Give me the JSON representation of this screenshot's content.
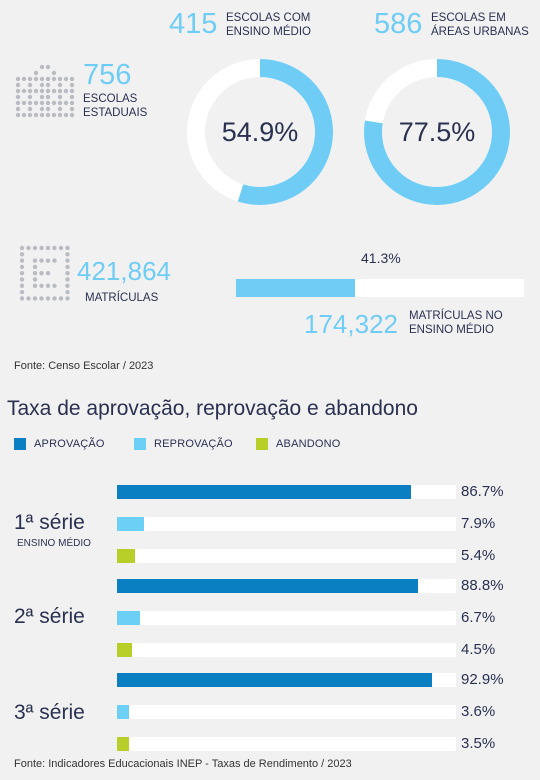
{
  "stats": {
    "escolas_estaduais": {
      "value": "756",
      "label_line1": "ESCOLAS",
      "label_line2": "ESTADUAIS"
    },
    "ensino_medio": {
      "value": "415",
      "label_line1": "ESCOLAS COM",
      "label_line2": "ENSINO MÉDIO",
      "percent_text": "54.9%",
      "fraction": 0.549
    },
    "areas_urbanas": {
      "value": "586",
      "label_line1": "ESCOLAS EM",
      "label_line2": "ÁREAS URBANAS",
      "percent_text": "77.5%",
      "fraction": 0.775
    },
    "matriculas": {
      "value": "421,864",
      "label": "MATRÍCULAS"
    },
    "matriculas_em": {
      "value": "174,322",
      "label_line1": "MATRÍCULAS NO",
      "label_line2": "ENSINO MÉDIO",
      "percent_text": "41.3%",
      "fraction": 0.413
    }
  },
  "source_top": "Fonte: Censo Escolar / 2023",
  "chart_data": {
    "type": "bar",
    "title": "Taxa de aprovação, reprovação e abandono",
    "orientation": "horizontal",
    "categories": [
      "1ª série",
      "2ª série",
      "3ª série"
    ],
    "category_note": "ENSINO MÉDIO",
    "series": [
      {
        "name": "APROVAÇÃO",
        "color": "#0a7fc2",
        "values": [
          86.7,
          88.8,
          92.9
        ],
        "labels": [
          "86.7%",
          "88.8%",
          "92.9%"
        ]
      },
      {
        "name": "REPROVAÇÃO",
        "color": "#6ccff6",
        "values": [
          7.9,
          6.7,
          3.6
        ],
        "labels": [
          "7.9%",
          "6.7%",
          "3.6%"
        ]
      },
      {
        "name": "ABANDONO",
        "color": "#b7cf28",
        "values": [
          5.4,
          4.5,
          3.5
        ],
        "labels": [
          "5.4%",
          "4.5%",
          "3.5%"
        ]
      }
    ],
    "xlim": [
      0,
      100
    ],
    "legend_position": "top-left"
  },
  "source_bottom": "Fonte: Indicadores Educacionais INEP - Taxas de Rendimento / 2023",
  "colors": {
    "light_blue": "#6fcdf5",
    "dark_blue": "#0a7fc2",
    "lime": "#b7cf28",
    "navy_text": "#2a3150",
    "track": "#ffffff"
  }
}
